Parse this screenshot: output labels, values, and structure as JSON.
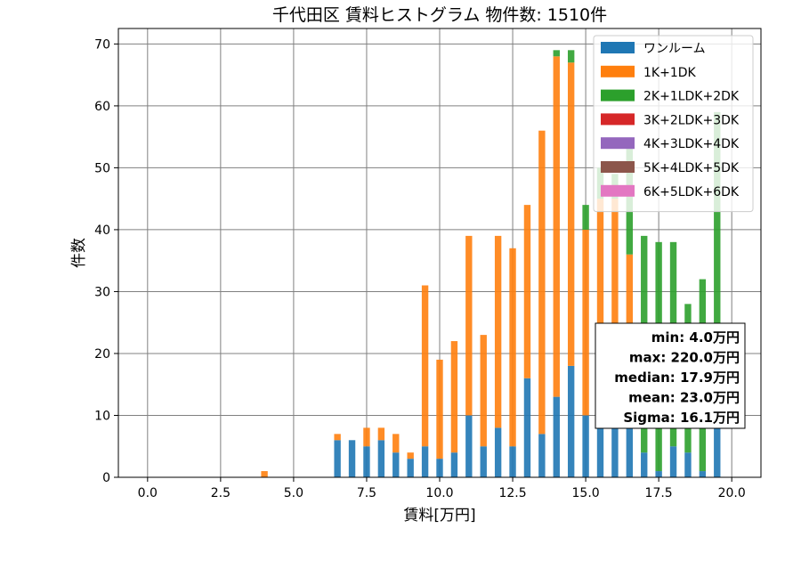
{
  "chart_data": {
    "type": "bar",
    "stacked": true,
    "title": "千代田区 賃料ヒストグラム  物件数: 1510件",
    "xlabel": "賃料[万円]",
    "ylabel": "件数",
    "xlim": [
      -1.0,
      21.0
    ],
    "ylim": [
      0,
      72.5
    ],
    "grid": true,
    "legend_position": "upper-right",
    "x_ticks": [
      0.0,
      2.5,
      5.0,
      7.5,
      10.0,
      12.5,
      15.0,
      17.5,
      20.0
    ],
    "x_tick_labels": [
      "0.0",
      "2.5",
      "5.0",
      "7.5",
      "10.0",
      "12.5",
      "15.0",
      "17.5",
      "20.0"
    ],
    "y_ticks": [
      0,
      10,
      20,
      30,
      40,
      50,
      60,
      70
    ],
    "y_tick_labels": [
      "0",
      "10",
      "20",
      "30",
      "40",
      "50",
      "60",
      "70"
    ],
    "bin_width": 0.25,
    "x": [
      4.0,
      6.5,
      7.0,
      7.5,
      8.0,
      8.5,
      9.0,
      9.5,
      10.0,
      10.5,
      11.0,
      11.5,
      12.0,
      12.5,
      13.0,
      13.5,
      14.0,
      14.5,
      15.0,
      15.5,
      16.0,
      16.5,
      17.0,
      17.5,
      18.0,
      18.5,
      19.0,
      19.5
    ],
    "series": [
      {
        "name": "ワンルーム",
        "color": "#1f77b4",
        "values": [
          0,
          6,
          6,
          5,
          6,
          4,
          3,
          5,
          3,
          4,
          10,
          5,
          8,
          5,
          16,
          7,
          13,
          18,
          10,
          8,
          8,
          10,
          4,
          1,
          5,
          4,
          1,
          10
        ]
      },
      {
        "name": "1K+1DK",
        "color": "#ff7f0e",
        "values": [
          1,
          1,
          0,
          3,
          2,
          3,
          1,
          26,
          16,
          18,
          29,
          18,
          31,
          32,
          28,
          49,
          55,
          49,
          30,
          37,
          37,
          26,
          0,
          0,
          0,
          0,
          0,
          0
        ]
      },
      {
        "name": "2K+1LDK+2DK",
        "color": "#2ca02c",
        "values": [
          0,
          0,
          0,
          0,
          0,
          0,
          0,
          0,
          0,
          0,
          0,
          0,
          0,
          0,
          0,
          0,
          1,
          2,
          4,
          5,
          4,
          18,
          35,
          37,
          33,
          24,
          31,
          49
        ]
      },
      {
        "name": "3K+2LDK+3DK",
        "color": "#d62728",
        "values": [
          0,
          0,
          0,
          0,
          0,
          0,
          0,
          0,
          0,
          0,
          0,
          0,
          0,
          0,
          0,
          0,
          0,
          0,
          0,
          0,
          0,
          0,
          0,
          0,
          0,
          0,
          0,
          0
        ]
      },
      {
        "name": "4K+3LDK+4DK",
        "color": "#9467bd",
        "values": [
          0,
          0,
          0,
          0,
          0,
          0,
          0,
          0,
          0,
          0,
          0,
          0,
          0,
          0,
          0,
          0,
          0,
          0,
          0,
          0,
          0,
          0,
          0,
          0,
          0,
          0,
          0,
          0
        ]
      },
      {
        "name": "5K+4LDK+5DK",
        "color": "#8c564b",
        "values": [
          0,
          0,
          0,
          0,
          0,
          0,
          0,
          0,
          0,
          0,
          0,
          0,
          0,
          0,
          0,
          0,
          0,
          0,
          0,
          0,
          0,
          0,
          0,
          0,
          0,
          0,
          0,
          0
        ]
      },
      {
        "name": "6K+5LDK+6DK",
        "color": "#e377c2",
        "values": [
          0,
          0,
          0,
          0,
          0,
          0,
          0,
          0,
          0,
          0,
          0,
          0,
          0,
          0,
          0,
          0,
          0,
          0,
          0,
          0,
          0,
          0,
          0,
          0,
          0,
          0,
          0,
          0
        ]
      }
    ],
    "annotation": [
      "min: 4.0万円",
      "max: 220.0万円",
      "median: 17.9万円",
      "mean: 23.0万円",
      "Sigma: 16.1万円"
    ]
  }
}
